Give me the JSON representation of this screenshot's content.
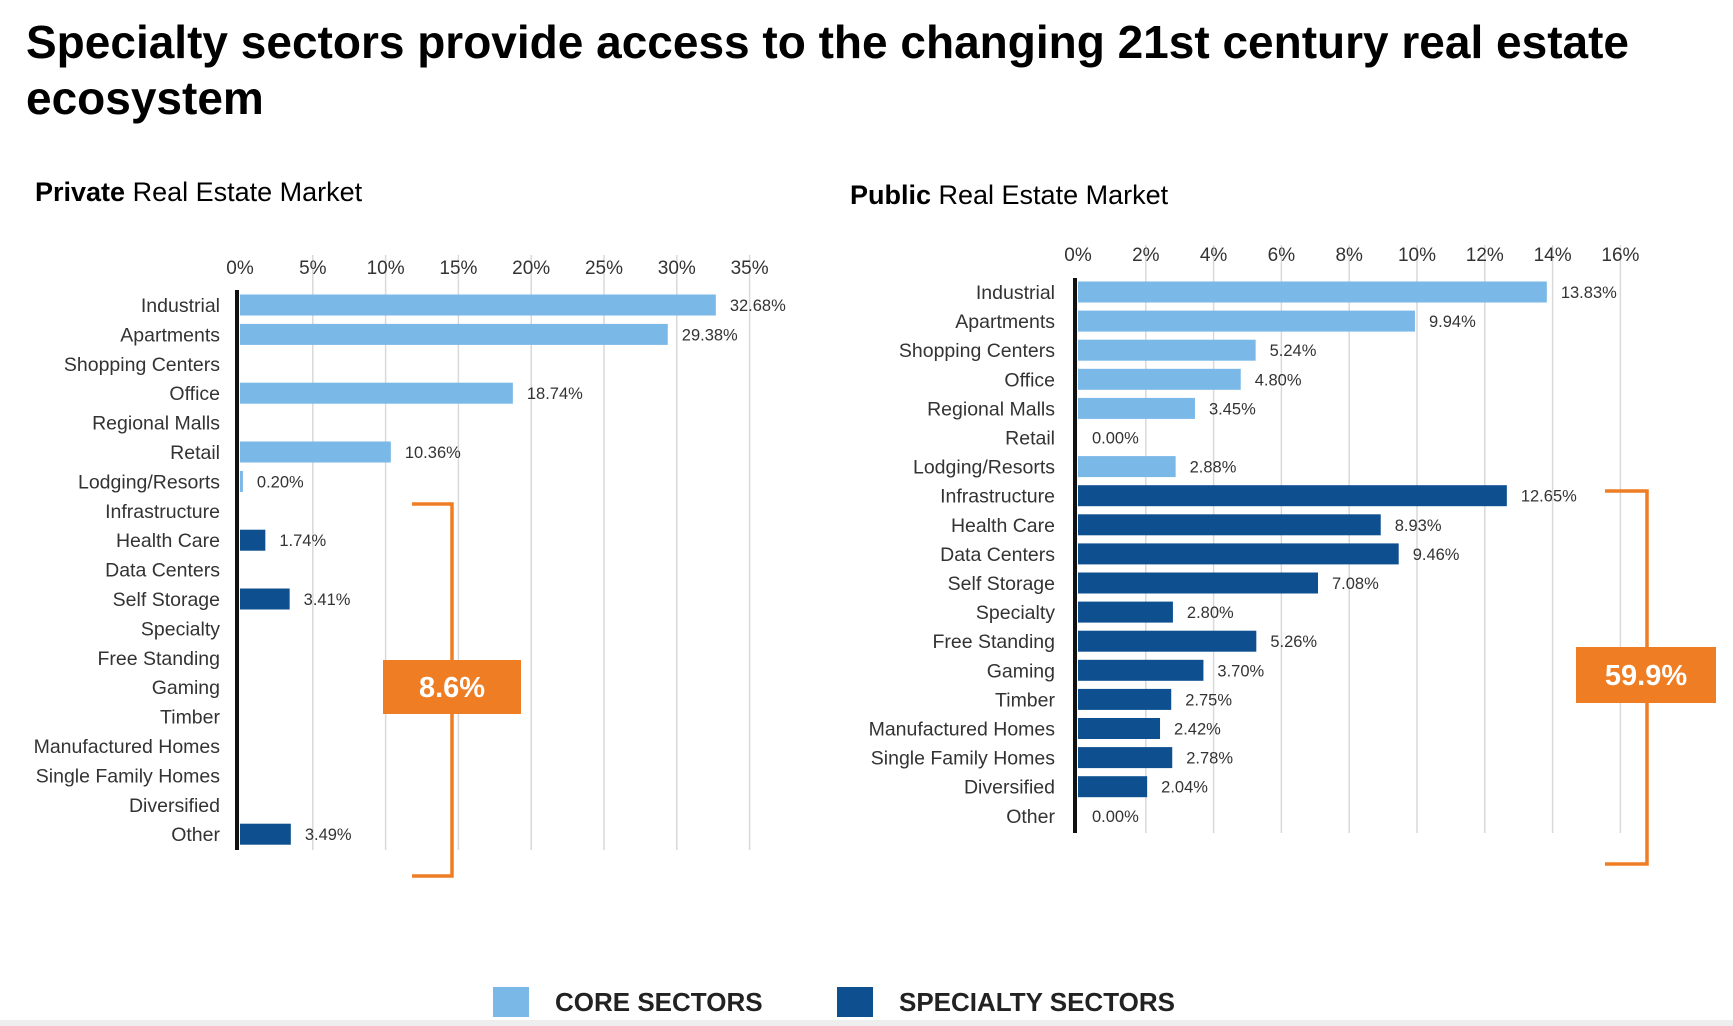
{
  "title": "Specialty sectors provide access to the changing 21st century real estate ecosystem",
  "colors": {
    "core": "#7ab8e8",
    "specialty": "#0d4f8f",
    "accent": "#ee7d23",
    "grid": "#d9d9d9",
    "axis": "#111111"
  },
  "private_heading": {
    "bold": "Private",
    "rest": " Real Estate Market"
  },
  "public_heading": {
    "bold": "Public",
    "rest": " Real Estate Market"
  },
  "legend": {
    "core_label": "CORE SECTORS",
    "specialty_label": "SPECIALTY SECTORS"
  },
  "chart_data": [
    {
      "type": "bar",
      "orientation": "horizontal",
      "title": "Private Real Estate Market",
      "xlim": [
        0,
        35
      ],
      "xticks": [
        "0%",
        "5%",
        "10%",
        "15%",
        "20%",
        "25%",
        "30%",
        "35%"
      ],
      "xtick_values": [
        0,
        5,
        10,
        15,
        20,
        25,
        30,
        35
      ],
      "categories": [
        "Industrial",
        "Apartments",
        "Shopping Centers",
        "Office",
        "Regional Malls",
        "Retail",
        "Lodging/Resorts",
        "Infrastructure",
        "Health Care",
        "Data Centers",
        "Self Storage",
        "Specialty",
        "Free Standing",
        "Gaming",
        "Timber",
        "Manufactured Homes",
        "Single Family Homes",
        "Diversified",
        "Other"
      ],
      "values": [
        32.68,
        29.38,
        null,
        18.74,
        null,
        10.36,
        0.2,
        null,
        1.74,
        null,
        3.41,
        null,
        null,
        null,
        null,
        null,
        null,
        null,
        3.49
      ],
      "labels": [
        "32.68%",
        "29.38%",
        "",
        "18.74%",
        "",
        "10.36%",
        "0.20%",
        "",
        "1.74%",
        "",
        "3.41%",
        "",
        "",
        "",
        "",
        "",
        "",
        "",
        "3.49%"
      ],
      "groups": [
        "core",
        "core",
        "core",
        "core",
        "core",
        "core",
        "core",
        "specialty",
        "specialty",
        "specialty",
        "specialty",
        "specialty",
        "specialty",
        "specialty",
        "specialty",
        "specialty",
        "specialty",
        "specialty",
        "specialty"
      ],
      "specialty_total": "8.6%",
      "grid": true
    },
    {
      "type": "bar",
      "orientation": "horizontal",
      "title": "Public Real Estate Market",
      "xlim": [
        0,
        16
      ],
      "xticks": [
        "0%",
        "2%",
        "4%",
        "6%",
        "8%",
        "10%",
        "12%",
        "14%",
        "16%"
      ],
      "xtick_values": [
        0,
        2,
        4,
        6,
        8,
        10,
        12,
        14,
        16
      ],
      "categories": [
        "Industrial",
        "Apartments",
        "Shopping Centers",
        "Office",
        "Regional Malls",
        "Retail",
        "Lodging/Resorts",
        "Infrastructure",
        "Health Care",
        "Data Centers",
        "Self Storage",
        "Specialty",
        "Free Standing",
        "Gaming",
        "Timber",
        "Manufactured Homes",
        "Single Family Homes",
        "Diversified",
        "Other"
      ],
      "values": [
        13.83,
        9.94,
        5.24,
        4.8,
        3.45,
        0.0,
        2.88,
        12.65,
        8.93,
        9.46,
        7.08,
        2.8,
        5.26,
        3.7,
        2.75,
        2.42,
        2.78,
        2.04,
        0.0
      ],
      "labels": [
        "13.83%",
        "9.94%",
        "5.24%",
        "4.80%",
        "3.45%",
        "0.00%",
        "2.88%",
        "12.65%",
        "8.93%",
        "9.46%",
        "7.08%",
        "2.80%",
        "5.26%",
        "3.70%",
        "2.75%",
        "2.42%",
        "2.78%",
        "2.04%",
        "0.00%"
      ],
      "groups": [
        "core",
        "core",
        "core",
        "core",
        "core",
        "core",
        "core",
        "specialty",
        "specialty",
        "specialty",
        "specialty",
        "specialty",
        "specialty",
        "specialty",
        "specialty",
        "specialty",
        "specialty",
        "specialty",
        "specialty"
      ],
      "specialty_total": "59.9%",
      "grid": true
    }
  ]
}
